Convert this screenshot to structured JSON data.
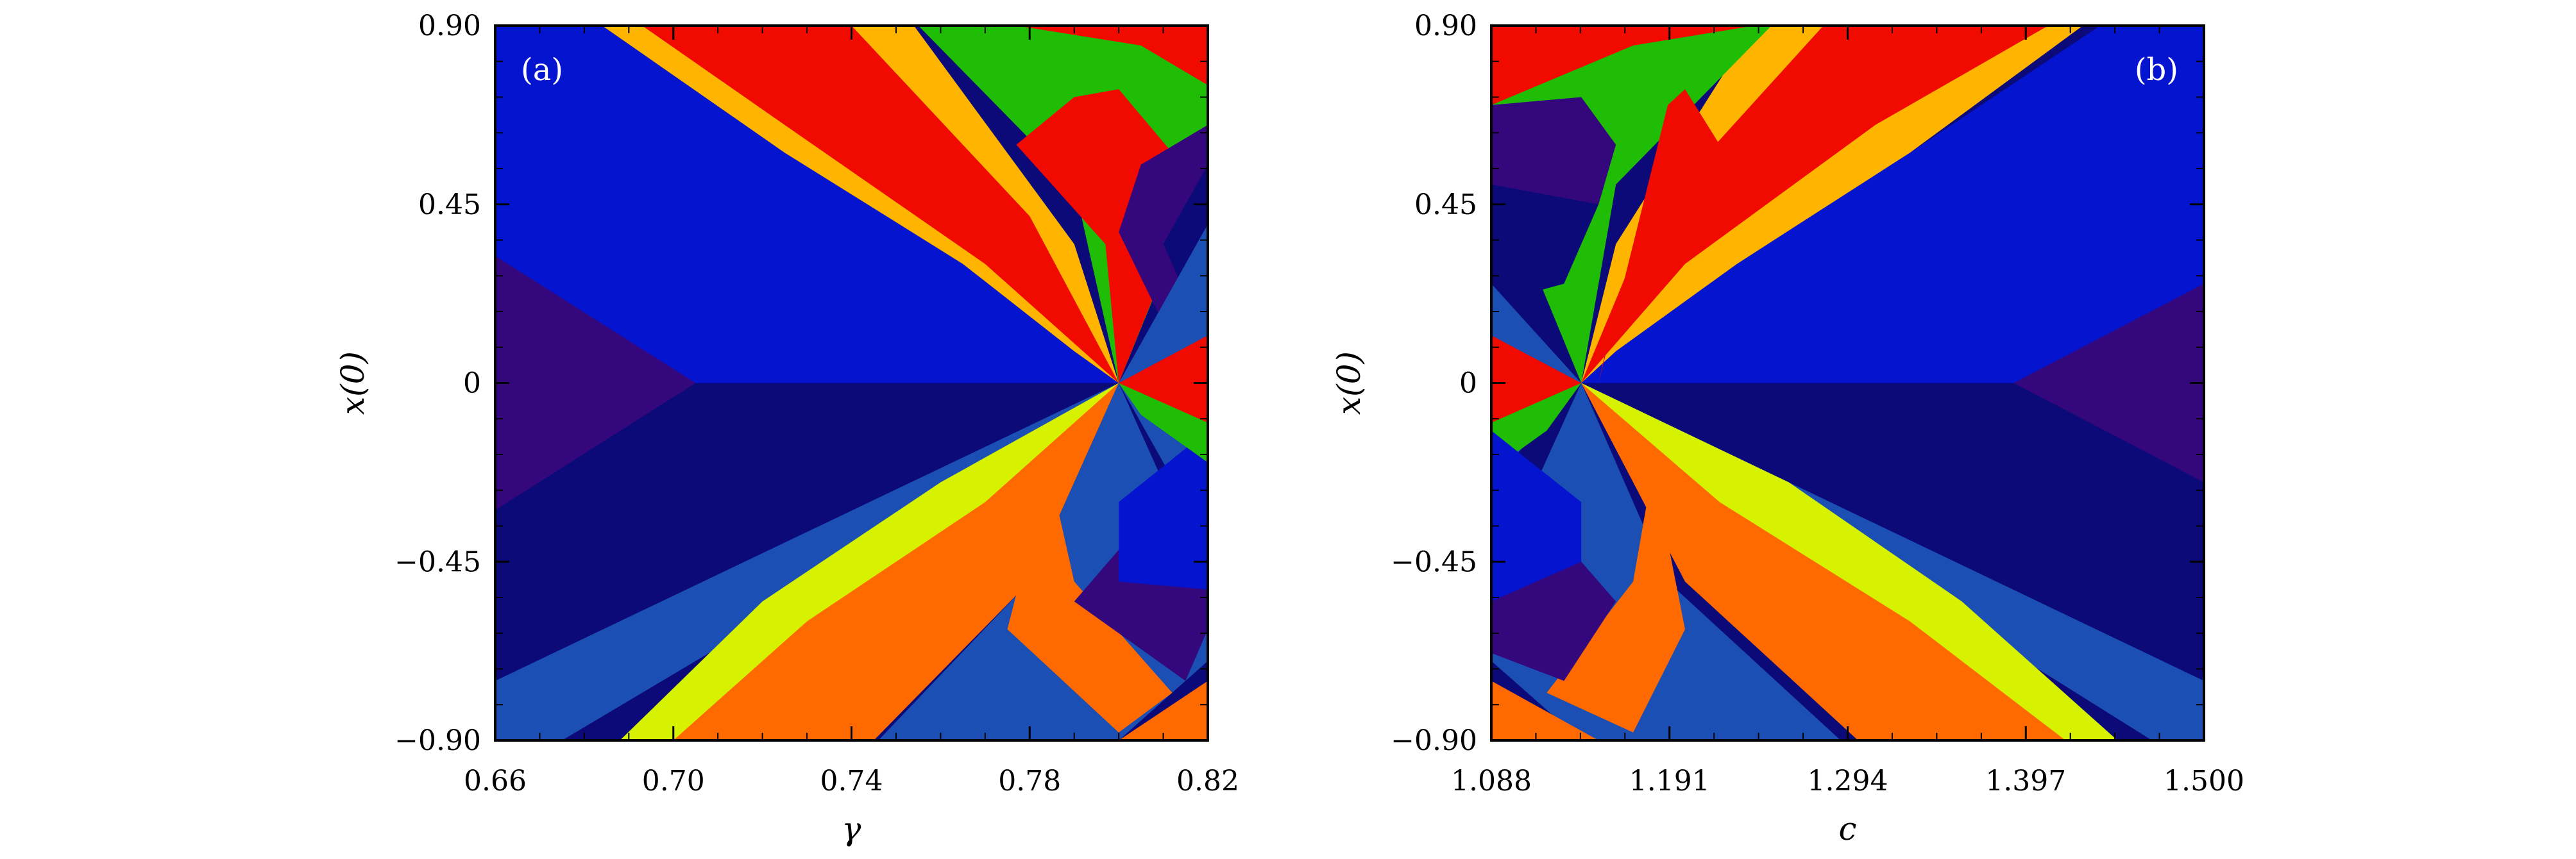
{
  "palette": {
    "deep_navy": "#0b0a78",
    "purple": "#34077d",
    "blue": "#0414cf",
    "mid_blue": "#1b4fb3",
    "red": "#f00a00",
    "orange_yellow": "#ffb400",
    "green": "#1fbd05",
    "orange": "#ff6a00",
    "yellow_green": "#d6f200",
    "frame": "#000000"
  },
  "chart_data": [
    {
      "type": "heatmap",
      "panel_label": "(a)",
      "xlabel": "γ",
      "ylabel": "x(0)",
      "xlim": [
        0.66,
        0.82
      ],
      "ylim": [
        -0.9,
        0.9
      ],
      "x_ticks": [
        0.66,
        0.7,
        0.74,
        0.78,
        0.82
      ],
      "x_tick_labels": [
        "0.66",
        "0.70",
        "0.74",
        "0.78",
        "0.82"
      ],
      "y_ticks": [
        -0.9,
        -0.45,
        0,
        0.45,
        0.9
      ],
      "y_tick_labels": [
        "−0.90",
        "−0.45",
        "0",
        "0.45",
        "0.90"
      ],
      "background": "deep_navy",
      "regions": [
        {
          "color": "blue",
          "points": [
            [
              0.66,
              0.9
            ],
            [
              0.684,
              0.9
            ],
            [
              0.725,
              0.58
            ],
            [
              0.765,
              0.3
            ],
            [
              0.79,
              0.08
            ],
            [
              0.8,
              0.0
            ],
            [
              0.66,
              0.0
            ]
          ]
        },
        {
          "color": "purple",
          "points": [
            [
              0.66,
              0.32
            ],
            [
              0.705,
              0.0
            ],
            [
              0.66,
              -0.32
            ]
          ]
        },
        {
          "color": "orange_yellow",
          "points": [
            [
              0.684,
              0.9
            ],
            [
              0.754,
              0.9
            ],
            [
              0.79,
              0.35
            ],
            [
              0.8,
              0.0
            ],
            [
              0.79,
              0.08
            ],
            [
              0.765,
              0.3
            ],
            [
              0.725,
              0.58
            ]
          ]
        },
        {
          "color": "red",
          "points": [
            [
              0.693,
              0.9
            ],
            [
              0.74,
              0.9
            ],
            [
              0.78,
              0.42
            ],
            [
              0.8,
              0.0
            ],
            [
              0.77,
              0.3
            ],
            [
              0.725,
              0.65
            ]
          ]
        },
        {
          "color": "green",
          "points": [
            [
              0.755,
              0.9
            ],
            [
              0.82,
              0.9
            ],
            [
              0.82,
              0.55
            ],
            [
              0.8,
              0.0
            ],
            [
              0.79,
              0.5
            ]
          ]
        },
        {
          "color": "red",
          "points": [
            [
              0.777,
              0.9
            ],
            [
              0.82,
              0.9
            ],
            [
              0.82,
              0.75
            ],
            [
              0.805,
              0.85
            ]
          ]
        },
        {
          "color": "red",
          "points": [
            [
              0.777,
              0.6
            ],
            [
              0.79,
              0.72
            ],
            [
              0.8,
              0.74
            ],
            [
              0.818,
              0.5
            ],
            [
              0.8,
              0.0
            ],
            [
              0.797,
              0.35
            ],
            [
              0.785,
              0.5
            ]
          ]
        },
        {
          "color": "purple",
          "points": [
            [
              0.805,
              0.55
            ],
            [
              0.82,
              0.65
            ],
            [
              0.82,
              0.32
            ],
            [
              0.81,
              0.15
            ],
            [
              0.8,
              0.38
            ]
          ]
        },
        {
          "color": "deep_navy",
          "points": [
            [
              0.81,
              0.35
            ],
            [
              0.82,
              0.55
            ],
            [
              0.82,
              0.1
            ]
          ]
        },
        {
          "color": "mid_blue",
          "points": [
            [
              0.8,
              0.0
            ],
            [
              0.82,
              0.4
            ],
            [
              0.82,
              -0.4
            ]
          ]
        },
        {
          "color": "red",
          "points": [
            [
              0.8,
              0.0
            ],
            [
              0.82,
              0.12
            ],
            [
              0.82,
              -0.12
            ]
          ]
        },
        {
          "color": "mid_blue",
          "points": [
            [
              0.66,
              -0.9
            ],
            [
              0.675,
              -0.9
            ],
            [
              0.72,
              -0.6
            ],
            [
              0.77,
              -0.3
            ],
            [
              0.8,
              0.0
            ],
            [
              0.66,
              -0.75
            ]
          ]
        },
        {
          "color": "yellow_green",
          "points": [
            [
              0.688,
              -0.9
            ],
            [
              0.72,
              -0.9
            ],
            [
              0.77,
              -0.45
            ],
            [
              0.8,
              0.0
            ],
            [
              0.76,
              -0.25
            ],
            [
              0.72,
              -0.55
            ]
          ]
        },
        {
          "color": "orange",
          "points": [
            [
              0.7,
              -0.9
            ],
            [
              0.745,
              -0.9
            ],
            [
              0.78,
              -0.5
            ],
            [
              0.8,
              0.0
            ],
            [
              0.77,
              -0.3
            ],
            [
              0.73,
              -0.6
            ]
          ]
        },
        {
          "color": "mid_blue",
          "points": [
            [
              0.746,
              -0.9
            ],
            [
              0.8,
              -0.9
            ],
            [
              0.82,
              -0.7
            ],
            [
              0.82,
              -0.5
            ],
            [
              0.8,
              0.0
            ],
            [
              0.78,
              -0.5
            ]
          ]
        },
        {
          "color": "orange",
          "points": [
            [
              0.775,
              -0.62
            ],
            [
              0.78,
              -0.4
            ],
            [
              0.8,
              0.0
            ],
            [
              0.785,
              -0.25
            ],
            [
              0.79,
              -0.5
            ],
            [
              0.812,
              -0.78
            ],
            [
              0.8,
              -0.88
            ]
          ]
        },
        {
          "color": "purple",
          "points": [
            [
              0.79,
              -0.55
            ],
            [
              0.815,
              -0.75
            ],
            [
              0.82,
              -0.62
            ],
            [
              0.82,
              -0.45
            ],
            [
              0.8,
              -0.42
            ]
          ]
        },
        {
          "color": "blue",
          "points": [
            [
              0.8,
              -0.3
            ],
            [
              0.82,
              -0.12
            ],
            [
              0.82,
              -0.52
            ],
            [
              0.8,
              -0.5
            ]
          ]
        },
        {
          "color": "orange",
          "points": [
            [
              0.8,
              -0.9
            ],
            [
              0.82,
              -0.9
            ],
            [
              0.82,
              -0.75
            ]
          ]
        },
        {
          "color": "green",
          "points": [
            [
              0.8,
              0.0
            ],
            [
              0.82,
              -0.1
            ],
            [
              0.82,
              -0.2
            ],
            [
              0.805,
              -0.08
            ]
          ]
        }
      ]
    },
    {
      "type": "heatmap",
      "panel_label": "(b)",
      "xlabel": "c",
      "ylabel": "x(0)",
      "xlim": [
        1.088,
        1.5
      ],
      "ylim": [
        -0.9,
        0.9
      ],
      "x_ticks": [
        1.088,
        1.191,
        1.294,
        1.397,
        1.5
      ],
      "x_tick_labels": [
        "1.088",
        "1.191",
        "1.294",
        "1.397",
        "1.500"
      ],
      "y_ticks": [
        -0.9,
        -0.45,
        0,
        0.45,
        0.9
      ],
      "y_tick_labels": [
        "−0.90",
        "−0.45",
        "0",
        "0.45",
        "0.90"
      ],
      "background": "deep_navy",
      "regions": [
        {
          "color": "blue",
          "points": [
            [
              1.5,
              0.9
            ],
            [
              1.44,
              0.9
            ],
            [
              1.33,
              0.58
            ],
            [
              1.23,
              0.3
            ],
            [
              1.16,
              0.08
            ],
            [
              1.14,
              0.0
            ],
            [
              1.5,
              0.0
            ]
          ]
        },
        {
          "color": "purple",
          "points": [
            [
              1.5,
              0.25
            ],
            [
              1.39,
              0.0
            ],
            [
              1.5,
              -0.25
            ]
          ]
        },
        {
          "color": "orange_yellow",
          "points": [
            [
              1.43,
              0.9
            ],
            [
              1.24,
              0.9
            ],
            [
              1.16,
              0.35
            ],
            [
              1.14,
              0.0
            ],
            [
              1.16,
              0.08
            ],
            [
              1.23,
              0.3
            ],
            [
              1.33,
              0.58
            ]
          ]
        },
        {
          "color": "red",
          "points": [
            [
              1.41,
              0.9
            ],
            [
              1.28,
              0.9
            ],
            [
              1.18,
              0.42
            ],
            [
              1.14,
              0.0
            ],
            [
              1.2,
              0.3
            ],
            [
              1.31,
              0.65
            ]
          ]
        },
        {
          "color": "green",
          "points": [
            [
              1.25,
              0.9
            ],
            [
              1.088,
              0.9
            ],
            [
              1.088,
              0.55
            ],
            [
              1.14,
              0.0
            ],
            [
              1.16,
              0.5
            ]
          ]
        },
        {
          "color": "red",
          "points": [
            [
              1.088,
              0.9
            ],
            [
              1.24,
              0.9
            ],
            [
              1.17,
              0.85
            ],
            [
              1.088,
              0.7
            ]
          ]
        },
        {
          "color": "purple",
          "points": [
            [
              1.088,
              0.7
            ],
            [
              1.14,
              0.72
            ],
            [
              1.16,
              0.6
            ],
            [
              1.15,
              0.45
            ],
            [
              1.1,
              0.45
            ],
            [
              1.088,
              0.5
            ]
          ]
        },
        {
          "color": "deep_navy",
          "points": [
            [
              1.088,
              0.5
            ],
            [
              1.15,
              0.45
            ],
            [
              1.13,
              0.25
            ],
            [
              1.088,
              0.2
            ]
          ]
        },
        {
          "color": "red",
          "points": [
            [
              1.15,
              0.0
            ],
            [
              1.19,
              0.7
            ],
            [
              1.2,
              0.74
            ],
            [
              1.22,
              0.6
            ],
            [
              1.16,
              0.2
            ]
          ]
        },
        {
          "color": "mid_blue",
          "points": [
            [
              1.14,
              0.0
            ],
            [
              1.088,
              0.25
            ],
            [
              1.088,
              -0.25
            ]
          ]
        },
        {
          "color": "red",
          "points": [
            [
              1.14,
              0.0
            ],
            [
              1.088,
              0.12
            ],
            [
              1.088,
              -0.12
            ]
          ]
        },
        {
          "color": "green",
          "points": [
            [
              1.14,
              0.0
            ],
            [
              1.088,
              -0.1
            ],
            [
              1.088,
              -0.22
            ],
            [
              1.12,
              -0.12
            ]
          ]
        },
        {
          "color": "mid_blue",
          "points": [
            [
              1.5,
              -0.9
            ],
            [
              1.47,
              -0.9
            ],
            [
              1.36,
              -0.6
            ],
            [
              1.24,
              -0.3
            ],
            [
              1.14,
              0.0
            ],
            [
              1.5,
              -0.75
            ]
          ]
        },
        {
          "color": "yellow_green",
          "points": [
            [
              1.45,
              -0.9
            ],
            [
              1.38,
              -0.9
            ],
            [
              1.25,
              -0.45
            ],
            [
              1.14,
              0.0
            ],
            [
              1.26,
              -0.25
            ],
            [
              1.36,
              -0.55
            ]
          ]
        },
        {
          "color": "orange",
          "points": [
            [
              1.42,
              -0.9
            ],
            [
              1.3,
              -0.9
            ],
            [
              1.2,
              -0.5
            ],
            [
              1.14,
              0.0
            ],
            [
              1.22,
              -0.3
            ],
            [
              1.33,
              -0.6
            ]
          ]
        },
        {
          "color": "mid_blue",
          "points": [
            [
              1.29,
              -0.9
            ],
            [
              1.14,
              -0.9
            ],
            [
              1.088,
              -0.7
            ],
            [
              1.088,
              -0.5
            ],
            [
              1.14,
              0.0
            ],
            [
              1.19,
              -0.5
            ]
          ]
        },
        {
          "color": "orange",
          "points": [
            [
              1.2,
              -0.62
            ],
            [
              1.19,
              -0.4
            ],
            [
              1.14,
              0.0
            ],
            [
              1.18,
              -0.25
            ],
            [
              1.17,
              -0.5
            ],
            [
              1.12,
              -0.78
            ],
            [
              1.17,
              -0.88
            ]
          ]
        },
        {
          "color": "blue",
          "points": [
            [
              1.088,
              -0.12
            ],
            [
              1.14,
              -0.3
            ],
            [
              1.14,
              -0.5
            ],
            [
              1.088,
              -0.55
            ]
          ]
        },
        {
          "color": "purple",
          "points": [
            [
              1.088,
              -0.55
            ],
            [
              1.14,
              -0.45
            ],
            [
              1.16,
              -0.55
            ],
            [
              1.13,
              -0.75
            ],
            [
              1.088,
              -0.68
            ]
          ]
        },
        {
          "color": "orange",
          "points": [
            [
              1.088,
              -0.9
            ],
            [
              1.15,
              -0.9
            ],
            [
              1.088,
              -0.75
            ]
          ]
        }
      ]
    }
  ]
}
